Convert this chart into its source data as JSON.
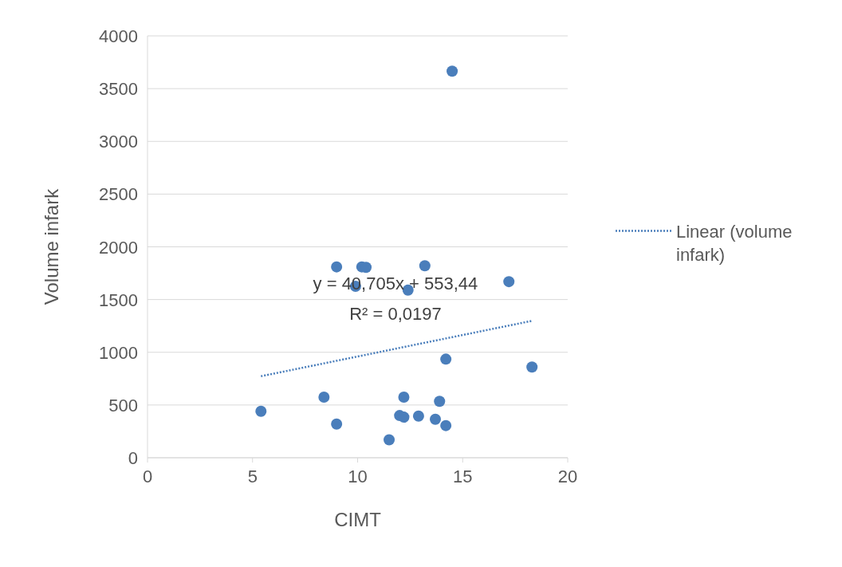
{
  "chart_data": {
    "type": "scatter",
    "xlabel": "CIMT",
    "ylabel": "Volume infark",
    "xlim": [
      0,
      20
    ],
    "xticks": [
      0,
      5,
      10,
      15,
      20
    ],
    "ylim": [
      0,
      4000
    ],
    "yticks": [
      0,
      500,
      1000,
      1500,
      2000,
      2500,
      3000,
      3500,
      4000
    ],
    "grid": "y",
    "legend": "right",
    "annotations": [
      "y = 40,705x + 553,44",
      "R² = 0,0197"
    ],
    "series": [
      {
        "color": "#4a7ebb",
        "marker": "circle",
        "x": [
          5.4,
          8.4,
          9.0,
          9.0,
          9.9,
          10.2,
          10.4,
          11.5,
          12.0,
          12.2,
          12.2,
          12.4,
          12.9,
          13.2,
          13.7,
          13.9,
          14.2,
          14.2,
          14.5,
          17.2,
          18.3
        ],
        "values": [
          440,
          575,
          320,
          1810,
          1625,
          1810,
          1805,
          170,
          400,
          385,
          575,
          1590,
          395,
          1820,
          365,
          535,
          935,
          305,
          3665,
          1670,
          860
        ]
      },
      {
        "type": "line",
        "name": "Linear (volume infark)",
        "color": "#4a7ebb",
        "line_style": "dotted",
        "x": [
          5.4,
          18.3
        ],
        "values": [
          773,
          1298
        ]
      }
    ]
  }
}
